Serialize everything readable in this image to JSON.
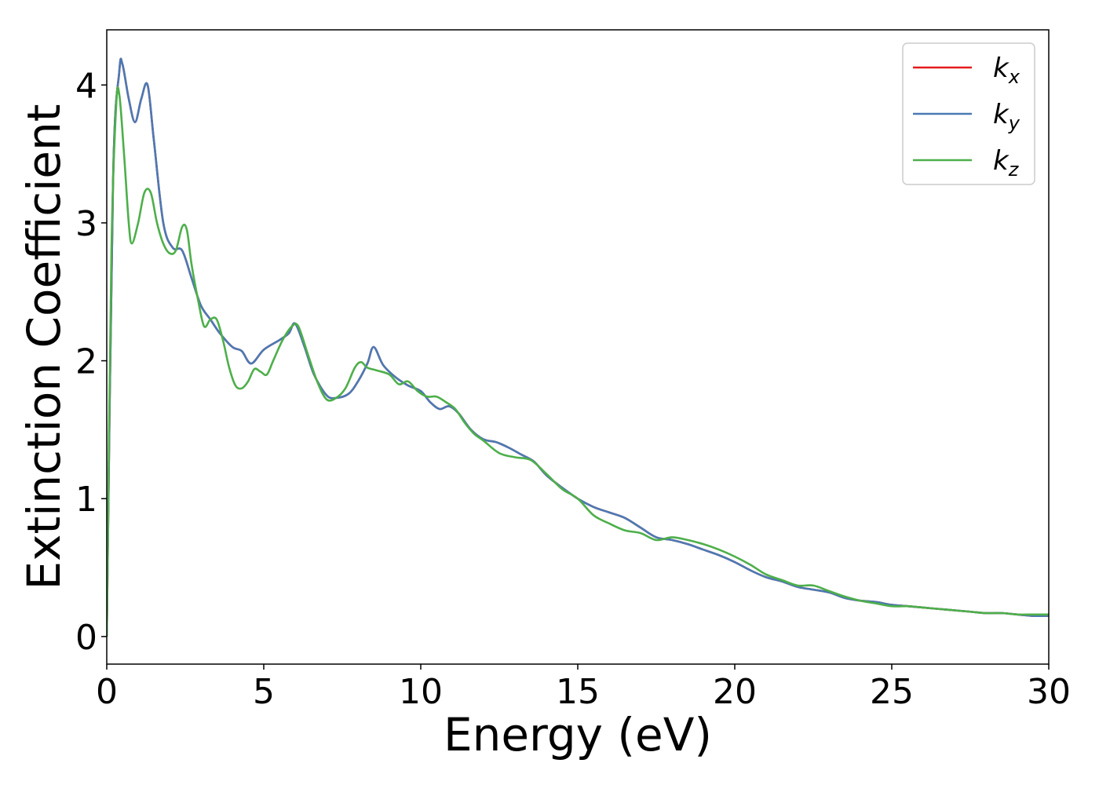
{
  "chart_data": {
    "type": "line",
    "title": "",
    "xlabel": "Energy (eV)",
    "ylabel": "Extinction Coefficient",
    "xlim": [
      0,
      30
    ],
    "ylim": [
      -0.2,
      4.4
    ],
    "xticks": [
      0,
      5,
      10,
      15,
      20,
      25,
      30
    ],
    "yticks": [
      0,
      1,
      2,
      3,
      4
    ],
    "xtick_labels": [
      "0",
      "5",
      "10",
      "15",
      "20",
      "25",
      "30"
    ],
    "ytick_labels": [
      "0",
      "1",
      "2",
      "3",
      "4"
    ],
    "grid": false,
    "legend": {
      "position": "top-right",
      "entries": [
        {
          "base": "k",
          "sub": "x"
        },
        {
          "base": "k",
          "sub": "y"
        },
        {
          "base": "k",
          "sub": "z"
        }
      ]
    },
    "series": [
      {
        "name": "k_x",
        "color": "#e41a1c",
        "x": [
          0,
          0.2,
          0.4,
          0.5,
          0.7,
          0.9,
          1.1,
          1.3,
          1.5,
          1.8,
          2.1,
          2.4,
          2.7,
          3.0,
          3.3,
          3.6,
          4.0,
          4.3,
          4.6,
          5.0,
          5.5,
          5.8,
          6.0,
          6.3,
          6.6,
          7.0,
          7.3,
          7.7,
          8.0,
          8.3,
          8.5,
          8.8,
          9.2,
          9.6,
          10.0,
          10.3,
          10.6,
          10.9,
          11.2,
          11.6,
          12.0,
          12.4,
          12.8,
          13.2,
          13.6,
          14.0,
          14.5,
          15.0,
          15.5,
          16.0,
          16.5,
          17.0,
          17.5,
          18.0,
          18.5,
          19.0,
          19.5,
          20.0,
          20.5,
          21.0,
          21.5,
          22.0,
          22.5,
          23.0,
          23.5,
          24.0,
          24.5,
          25.0,
          25.5,
          26.0,
          26.5,
          27.0,
          27.5,
          28.0,
          28.5,
          29.0,
          29.5,
          30.0
        ],
        "y": [
          0.0,
          3.3,
          4.1,
          4.15,
          3.9,
          3.73,
          3.9,
          4.0,
          3.6,
          3.0,
          2.82,
          2.8,
          2.6,
          2.4,
          2.3,
          2.2,
          2.1,
          2.07,
          1.98,
          2.08,
          2.15,
          2.2,
          2.27,
          2.1,
          1.9,
          1.75,
          1.73,
          1.76,
          1.85,
          1.98,
          2.1,
          1.97,
          1.88,
          1.82,
          1.78,
          1.7,
          1.65,
          1.67,
          1.62,
          1.5,
          1.43,
          1.41,
          1.37,
          1.32,
          1.27,
          1.17,
          1.08,
          1.0,
          0.94,
          0.9,
          0.86,
          0.79,
          0.72,
          0.7,
          0.67,
          0.63,
          0.59,
          0.54,
          0.48,
          0.43,
          0.4,
          0.36,
          0.34,
          0.32,
          0.28,
          0.26,
          0.25,
          0.23,
          0.22,
          0.21,
          0.2,
          0.19,
          0.18,
          0.17,
          0.17,
          0.16,
          0.15,
          0.15
        ]
      },
      {
        "name": "k_y",
        "color": "#4a7ab4",
        "x": [
          0,
          0.2,
          0.4,
          0.5,
          0.7,
          0.9,
          1.1,
          1.3,
          1.5,
          1.8,
          2.1,
          2.4,
          2.7,
          3.0,
          3.3,
          3.6,
          4.0,
          4.3,
          4.6,
          5.0,
          5.5,
          5.8,
          6.0,
          6.3,
          6.6,
          7.0,
          7.3,
          7.7,
          8.0,
          8.3,
          8.5,
          8.8,
          9.2,
          9.6,
          10.0,
          10.3,
          10.6,
          10.9,
          11.2,
          11.6,
          12.0,
          12.4,
          12.8,
          13.2,
          13.6,
          14.0,
          14.5,
          15.0,
          15.5,
          16.0,
          16.5,
          17.0,
          17.5,
          18.0,
          18.5,
          19.0,
          19.5,
          20.0,
          20.5,
          21.0,
          21.5,
          22.0,
          22.5,
          23.0,
          23.5,
          24.0,
          24.5,
          25.0,
          25.5,
          26.0,
          26.5,
          27.0,
          27.5,
          28.0,
          28.5,
          29.0,
          29.5,
          30.0
        ],
        "y": [
          0.0,
          3.3,
          4.1,
          4.15,
          3.9,
          3.73,
          3.9,
          4.0,
          3.6,
          3.0,
          2.82,
          2.8,
          2.6,
          2.4,
          2.3,
          2.2,
          2.1,
          2.07,
          1.98,
          2.08,
          2.15,
          2.2,
          2.27,
          2.1,
          1.9,
          1.75,
          1.73,
          1.76,
          1.85,
          1.98,
          2.1,
          1.97,
          1.88,
          1.82,
          1.78,
          1.7,
          1.65,
          1.67,
          1.62,
          1.5,
          1.43,
          1.41,
          1.37,
          1.32,
          1.27,
          1.17,
          1.08,
          1.0,
          0.94,
          0.9,
          0.86,
          0.79,
          0.72,
          0.7,
          0.67,
          0.63,
          0.59,
          0.54,
          0.48,
          0.43,
          0.4,
          0.36,
          0.34,
          0.32,
          0.28,
          0.26,
          0.25,
          0.23,
          0.22,
          0.21,
          0.2,
          0.19,
          0.18,
          0.17,
          0.17,
          0.16,
          0.15,
          0.15
        ]
      },
      {
        "name": "k_z",
        "color": "#4daf4a",
        "x": [
          0,
          0.15,
          0.3,
          0.4,
          0.55,
          0.7,
          0.8,
          1.0,
          1.2,
          1.4,
          1.6,
          1.8,
          2.0,
          2.2,
          2.4,
          2.55,
          2.7,
          2.9,
          3.1,
          3.3,
          3.5,
          3.7,
          3.9,
          4.1,
          4.3,
          4.5,
          4.7,
          4.9,
          5.1,
          5.3,
          5.6,
          5.9,
          6.1,
          6.4,
          6.7,
          7.0,
          7.3,
          7.6,
          7.9,
          8.1,
          8.3,
          8.6,
          9.0,
          9.3,
          9.6,
          9.9,
          10.2,
          10.5,
          10.8,
          11.1,
          11.4,
          11.7,
          12.0,
          12.5,
          13.0,
          13.5,
          14.0,
          14.5,
          15.0,
          15.5,
          16.0,
          16.5,
          17.0,
          17.5,
          18.0,
          18.5,
          19.0,
          19.5,
          20.0,
          20.5,
          21.0,
          21.5,
          22.0,
          22.5,
          23.0,
          23.5,
          24.0,
          24.5,
          25.0,
          25.5,
          26.0,
          26.5,
          27.0,
          27.5,
          28.0,
          28.5,
          29.0,
          29.5,
          30.0
        ],
        "y": [
          0.0,
          2.8,
          3.85,
          3.93,
          3.5,
          3.0,
          2.85,
          3.0,
          3.22,
          3.22,
          3.0,
          2.85,
          2.78,
          2.8,
          2.97,
          2.95,
          2.7,
          2.45,
          2.25,
          2.3,
          2.3,
          2.15,
          1.95,
          1.82,
          1.8,
          1.85,
          1.94,
          1.92,
          1.9,
          2.0,
          2.15,
          2.25,
          2.25,
          2.05,
          1.85,
          1.72,
          1.73,
          1.8,
          1.95,
          1.99,
          1.95,
          1.93,
          1.9,
          1.83,
          1.85,
          1.78,
          1.74,
          1.74,
          1.7,
          1.65,
          1.55,
          1.47,
          1.42,
          1.33,
          1.3,
          1.28,
          1.18,
          1.07,
          1.0,
          0.88,
          0.82,
          0.77,
          0.75,
          0.7,
          0.72,
          0.7,
          0.67,
          0.63,
          0.58,
          0.52,
          0.45,
          0.41,
          0.37,
          0.37,
          0.33,
          0.29,
          0.26,
          0.24,
          0.22,
          0.22,
          0.21,
          0.2,
          0.19,
          0.18,
          0.17,
          0.17,
          0.16,
          0.16,
          0.16
        ]
      }
    ]
  }
}
